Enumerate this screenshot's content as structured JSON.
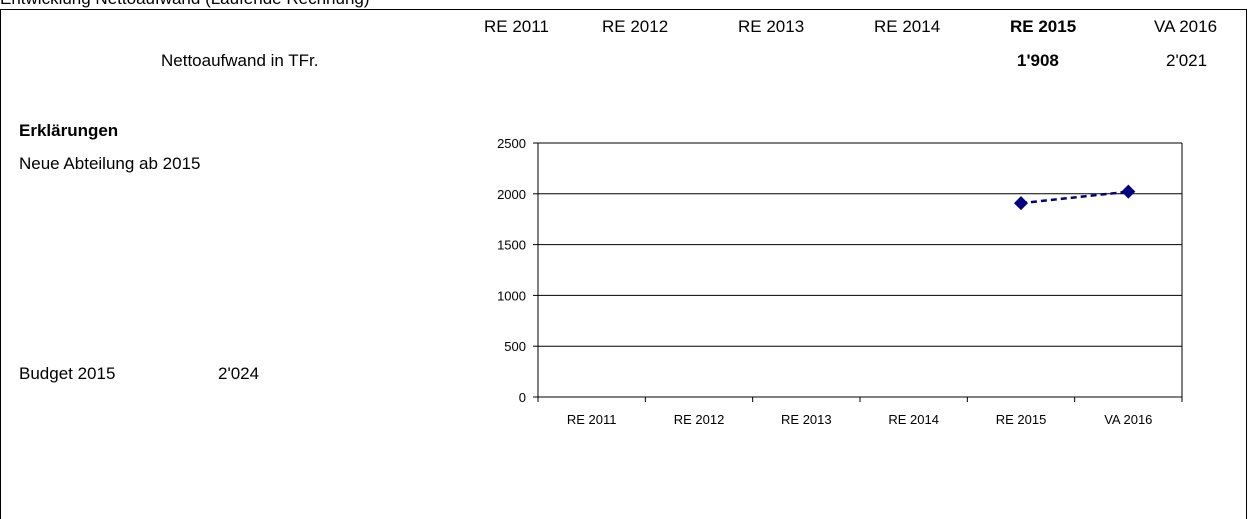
{
  "header": {
    "clipped_title": "Entwicklung Nettoaufwand (Laufende Rechnung)",
    "years": [
      "RE 2011",
      "RE 2012",
      "RE 2013",
      "RE 2014",
      "RE 2015",
      "VA 2016"
    ]
  },
  "row": {
    "label": "Nettoaufwand in TFr.",
    "values": [
      "",
      "",
      "",
      "",
      "1'908",
      "2'021"
    ]
  },
  "explanations": {
    "title": "Erklärungen",
    "text": "Neue Abteilung ab 2015"
  },
  "budget": {
    "label": "Budget 2015",
    "value": "2'024"
  },
  "chart_data": {
    "type": "line",
    "categories": [
      "RE 2011",
      "RE 2012",
      "RE 2013",
      "RE 2014",
      "RE 2015",
      "VA 2016"
    ],
    "series": [
      {
        "values": [
          null,
          null,
          null,
          null,
          1908,
          2021
        ]
      }
    ],
    "ylim": [
      0,
      2500
    ],
    "yticks": [
      0,
      500,
      1000,
      1500,
      2000,
      2500
    ],
    "grid": true,
    "line_style": "dashed",
    "marker": "diamond",
    "color": "#000080"
  }
}
